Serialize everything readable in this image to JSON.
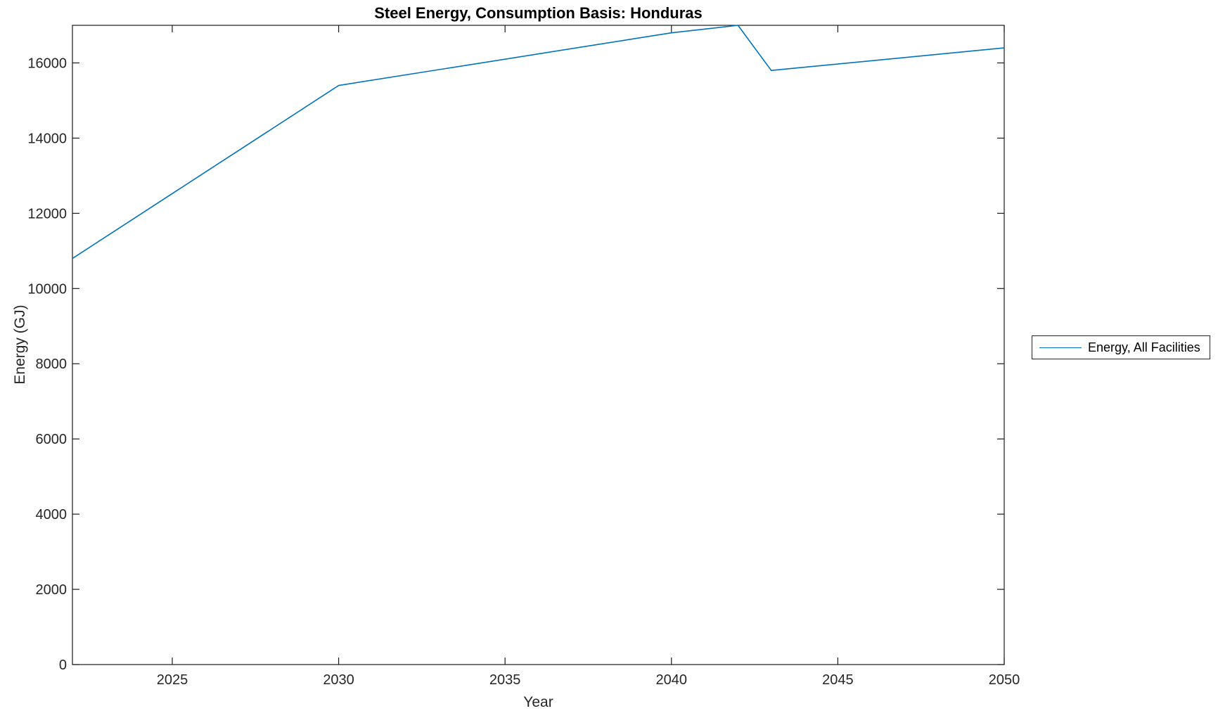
{
  "chart_data": {
    "type": "line",
    "title": "Steel Energy, Consumption Basis: Honduras",
    "xlabel": "Year",
    "ylabel": "Energy (GJ)",
    "xlim": [
      2022,
      2050
    ],
    "ylim": [
      0,
      17000
    ],
    "xticks": [
      2025,
      2030,
      2035,
      2040,
      2045,
      2050
    ],
    "yticks": [
      0,
      2000,
      4000,
      6000,
      8000,
      10000,
      12000,
      14000,
      16000
    ],
    "grid": false,
    "legend": {
      "position": "right-outside",
      "entries": [
        {
          "label": "Energy, All Facilities",
          "color": "#0072BD"
        }
      ]
    },
    "series": [
      {
        "name": "Energy, All Facilities",
        "color": "#0072BD",
        "x": [
          2022,
          2030,
          2040,
          2042,
          2043,
          2050
        ],
        "y": [
          10800,
          15400,
          16800,
          17000,
          15800,
          16400
        ]
      }
    ],
    "colors": {
      "line": "#0072BD",
      "axis": "#1a1a1a",
      "text": "#262626",
      "background": "#ffffff"
    }
  }
}
